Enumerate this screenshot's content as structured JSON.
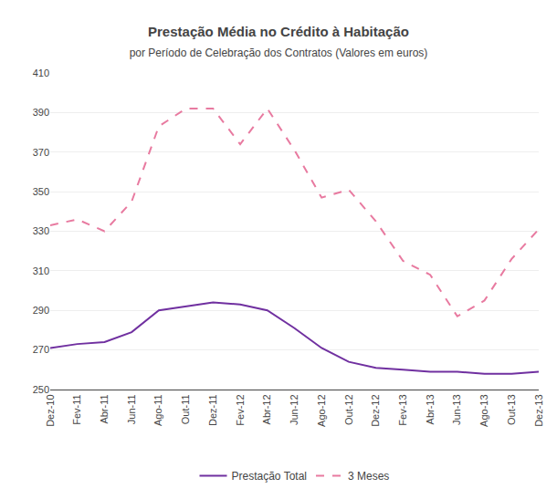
{
  "chart_data": {
    "type": "line",
    "title": "Prestação Média no Crédito à Habitação",
    "subtitle": "por Período de Celebração dos Contratos (Valores em euros)",
    "categories": [
      "Dez-10",
      "Fev-11",
      "Abr-11",
      "Jun-11",
      "Ago-11",
      "Out-11",
      "Dez-11",
      "Fev-12",
      "Abr-12",
      "Jun-12",
      "Ago-12",
      "Out-12",
      "Dez-12",
      "Fev-13",
      "Abr-13",
      "Jun-13",
      "Ago-13",
      "Out-13",
      "Dez-13"
    ],
    "series": [
      {
        "name": "Prestação Total",
        "color": "#7030a0",
        "line_style": "solid",
        "values": [
          271,
          273,
          274,
          279,
          290,
          292,
          294,
          293,
          290,
          281,
          271,
          264,
          261,
          260,
          259,
          259,
          258,
          258,
          259
        ]
      },
      {
        "name": "3 Meses",
        "color": "#e87aa0",
        "line_style": "dashed",
        "values": [
          333,
          336,
          330,
          345,
          383,
          392,
          392,
          374,
          392,
          371,
          347,
          351,
          335,
          315,
          308,
          287,
          295,
          316,
          331
        ]
      }
    ],
    "ylim": [
      250,
      410
    ],
    "yticks": [
      250,
      270,
      290,
      310,
      330,
      350,
      370,
      390,
      410
    ],
    "grid": "y",
    "legend": "bottom"
  }
}
